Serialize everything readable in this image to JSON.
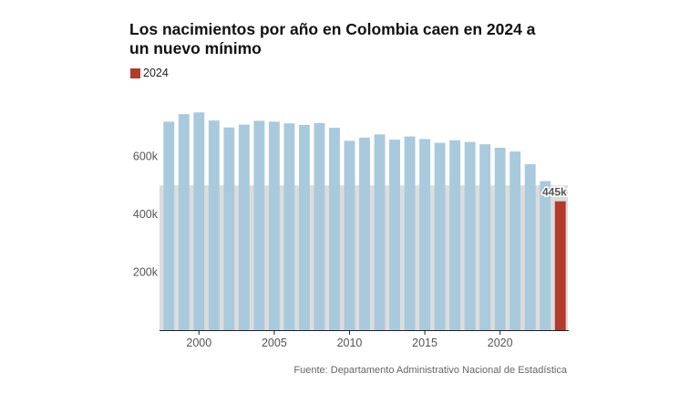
{
  "title": "Los nacimientos por año en Colombia caen en 2024 a un nuevo mínimo",
  "legend": {
    "label": "2024",
    "color": "#b23a2e"
  },
  "source": "Fuente: Departamento Administrativo Nacional de Estadística",
  "colors": {
    "bars": "#a9cadd",
    "highlight": "#b23a2e",
    "band": "#dcdcdc",
    "axis": "#222222",
    "tick_text": "#555555"
  },
  "chart_data": {
    "type": "bar",
    "title": "Los nacimientos por año en Colombia caen en 2024 a un nuevo mínimo",
    "xlabel": "",
    "ylabel": "",
    "x": [
      1998,
      1999,
      2000,
      2001,
      2002,
      2003,
      2004,
      2005,
      2006,
      2007,
      2008,
      2009,
      2010,
      2011,
      2012,
      2013,
      2014,
      2015,
      2016,
      2017,
      2018,
      2019,
      2020,
      2021,
      2022,
      2023,
      2024
    ],
    "values": [
      720000,
      746000,
      752000,
      724000,
      700000,
      710000,
      723000,
      720000,
      714000,
      709000,
      715000,
      699000,
      654000,
      665000,
      676000,
      658000,
      669000,
      660000,
      647000,
      656000,
      650000,
      642000,
      630000,
      617000,
      573000,
      515000,
      445000
    ],
    "highlight": {
      "x": 2024,
      "label": "445k"
    },
    "reference_band_upper": 500000,
    "ylim": [
      0,
      800000
    ],
    "y_ticks": [
      200000,
      400000,
      600000
    ],
    "y_tick_labels": [
      "200k",
      "400k",
      "600k"
    ],
    "x_ticks": [
      2000,
      2005,
      2010,
      2015,
      2020
    ],
    "x_tick_labels": [
      "2000",
      "2005",
      "2010",
      "2015",
      "2020"
    ],
    "legend_position": "top-left",
    "grid": false
  }
}
